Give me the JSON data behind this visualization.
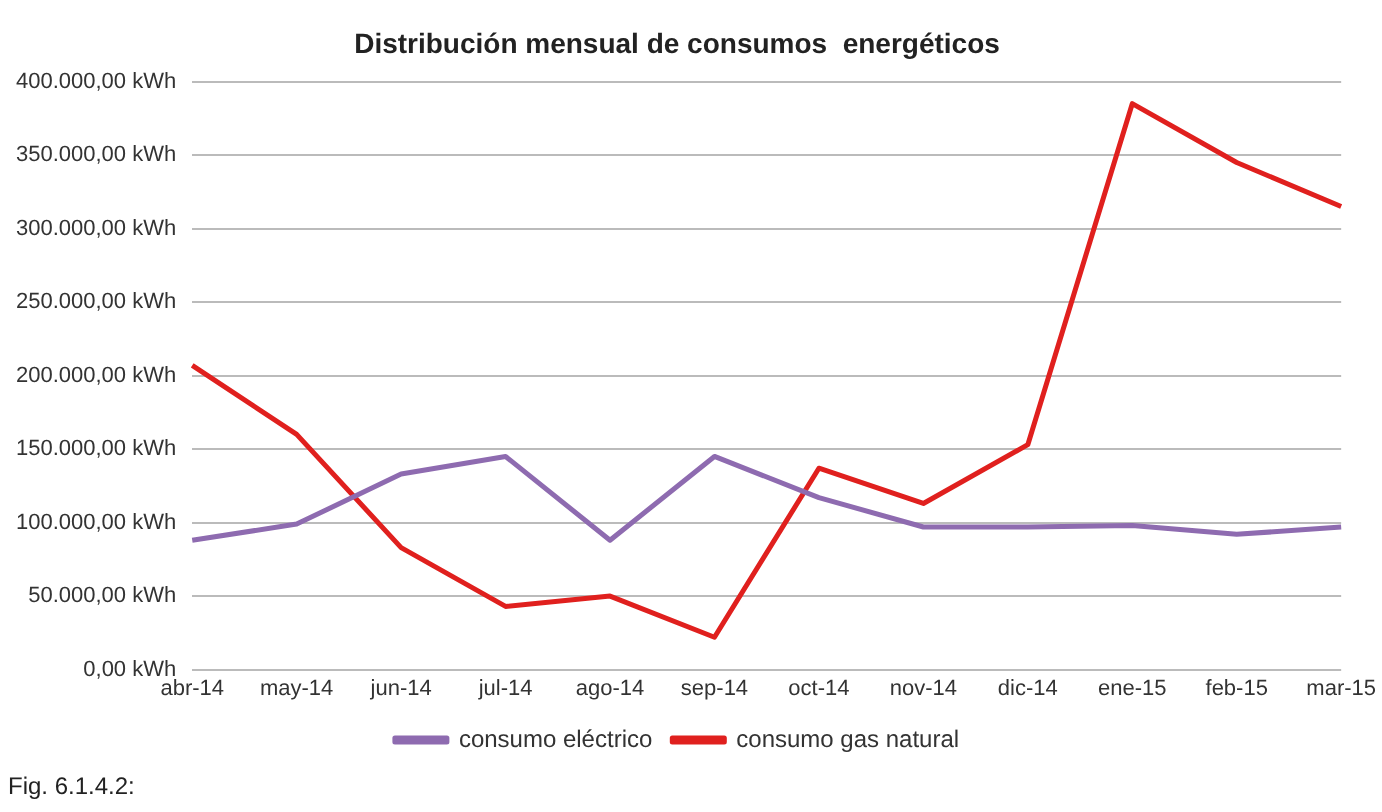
{
  "chart_data": {
    "type": "line",
    "title": "Distribución mensual de consumos  energéticos",
    "categories": [
      "abr-14",
      "may-14",
      "jun-14",
      "jul-14",
      "ago-14",
      "sep-14",
      "oct-14",
      "nov-14",
      "dic-14",
      "ene-15",
      "feb-15",
      "mar-15"
    ],
    "series": [
      {
        "name": "consumo eléctrico",
        "color": "#8e6bb0",
        "values": [
          88000,
          99000,
          133000,
          145000,
          88000,
          145000,
          117000,
          97000,
          97000,
          98000,
          92000,
          97000
        ]
      },
      {
        "name": "consumo gas natural",
        "color": "#e0201e",
        "values": [
          207000,
          160000,
          83000,
          43000,
          50000,
          22000,
          137000,
          113000,
          153000,
          385000,
          345000,
          315000
        ]
      }
    ],
    "ylim": [
      0,
      400000
    ],
    "yticks": [
      {
        "value": 0,
        "label": "0,00 kWh"
      },
      {
        "value": 50000,
        "label": "50.000,00 kWh"
      },
      {
        "value": 100000,
        "label": "100.000,00 kWh"
      },
      {
        "value": 150000,
        "label": "150.000,00 kWh"
      },
      {
        "value": 200000,
        "label": "200.000,00 kWh"
      },
      {
        "value": 250000,
        "label": "250.000,00 kWh"
      },
      {
        "value": 300000,
        "label": "300.000,00 kWh"
      },
      {
        "value": 350000,
        "label": "350.000,00 kWh"
      },
      {
        "value": 400000,
        "label": "400.000,00 kWh"
      }
    ],
    "grid": "y",
    "legend": "bottom",
    "marker": "none",
    "line_style": "solid",
    "annotations": [
      "Fig. 6.1.4.2:"
    ]
  }
}
